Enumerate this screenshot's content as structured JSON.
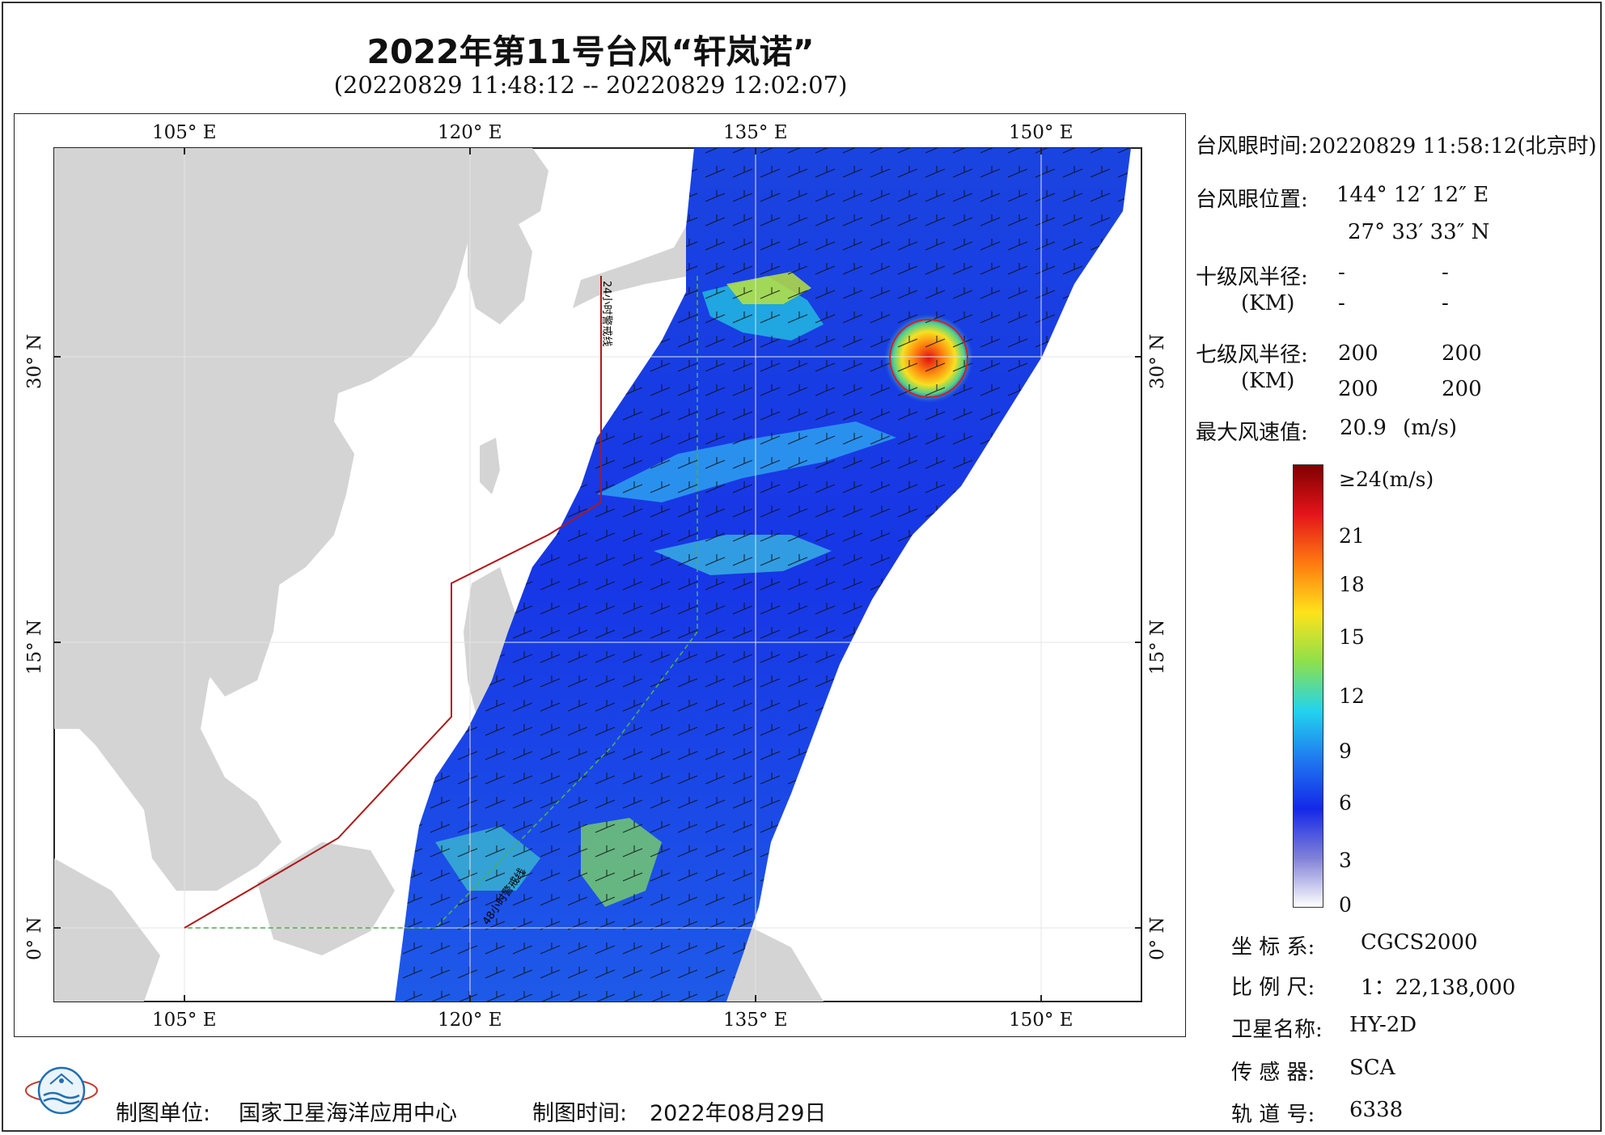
{
  "title": "2022年第11号台风“轩岚诺”",
  "subtitle": "(20220829 11:48:12 -- 20220829 12:02:07)",
  "map": {
    "lon_labels": [
      "105° E",
      "120° E",
      "135° E",
      "150° E"
    ],
    "lat_labels": [
      "30° N",
      "15° N",
      "0° N"
    ],
    "line_24h": "24小时警戒线",
    "line_48h": "48小时警戒线",
    "colors": {
      "land": "#d4d4d4",
      "ocean": "#ffffff",
      "warning_line": "#b01818",
      "line_48h": "#4caf50",
      "eye_circle": "#d61e1e"
    },
    "typhoon_eye": {
      "lon": 144.2,
      "lat": 27.56
    }
  },
  "info": {
    "eye_time_label": "台风眼时间:",
    "eye_time_value": "20220829 11:58:12(北京时)",
    "eye_pos_label": "台风眼位置:",
    "eye_lon": "144° 12′ 12″ E",
    "eye_lat": "27° 33′ 33″ N",
    "r10_label": "十级风半径:",
    "r10_unit": "(KM)",
    "r10_values": [
      "-",
      "-",
      "-",
      "-"
    ],
    "r7_label": "七级风半径:",
    "r7_unit": "(KM)",
    "r7_values": [
      "200",
      "200",
      "200",
      "200"
    ],
    "max_wind_label": "最大风速值:",
    "max_wind_value": "20.9",
    "max_wind_unit": "(m/s)"
  },
  "colorbar": {
    "labels": [
      "≥24(m/s)",
      "21",
      "18",
      "15",
      "12",
      "9",
      "6",
      "3",
      "0"
    ],
    "stops": [
      "#7f0000",
      "#e4141a",
      "#ff7a10",
      "#ffe21a",
      "#8fe04a",
      "#22d4ee",
      "#1f78f0",
      "#1428e8",
      "#8080d8",
      "#ffffff"
    ]
  },
  "meta": {
    "coord_label": "坐 标 系:",
    "coord_value": "CGCS2000",
    "scale_label": "比 例 尺:",
    "scale_value": "1：22,138,000",
    "satellite_label": "卫星名称:",
    "satellite_value": "HY-2D",
    "sensor_label": "传 感 器:",
    "sensor_value": "SCA",
    "orbit_label": "轨 道 号:",
    "orbit_value": "6338"
  },
  "footer": {
    "maker_label": "制图单位:",
    "maker_value": "国家卫星海洋应用中心",
    "time_label": "制图时间:",
    "time_value": "2022年08月29日"
  }
}
